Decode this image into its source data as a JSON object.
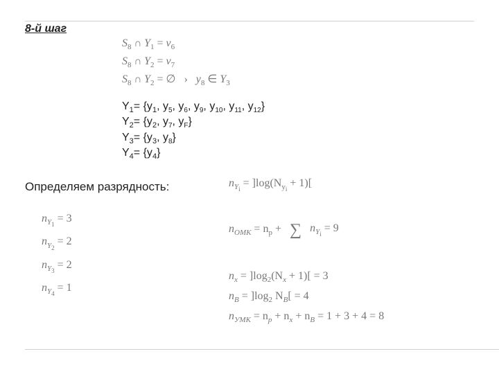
{
  "title": "8-й шаг",
  "intersections": {
    "l1_a": "S",
    "l1_b": "8",
    "l1_c": "Y",
    "l1_d": "1",
    "l1_e": "v",
    "l1_f": "6",
    "l2_a": "S",
    "l2_b": "8",
    "l2_c": "Y",
    "l2_d": "2",
    "l2_e": "v",
    "l2_f": "7",
    "l3_a": "S",
    "l3_b": "8",
    "l3_c": "Y",
    "l3_d": "2",
    "l3_emp": "∅",
    "l3_arrow": "›",
    "l3_y": "y",
    "l3_ys": "8",
    "l3_in": "∈",
    "l3_Y": "Y",
    "l3_Ys": "3"
  },
  "sets": {
    "Y1": "Y",
    "Y1s": "1",
    "Y1eq": "= {y",
    "y1s": "1",
    "c": ", y",
    "s5": "5",
    "s6": "6",
    "s9": "9",
    "s10": "10",
    "s11": "11",
    "s12": "12",
    "close": "}",
    "Y2s": "2",
    "Y2eq": "= {y",
    "y2s": "2",
    "s7": "7",
    "sF": "F",
    "Y3s": "3",
    "Y3eq": "= {y",
    "y3s": "3",
    "s8": "8",
    "Y4s": "4",
    "Y4eq": "= {y",
    "y4s": "4"
  },
  "section_label": "Определяем разрядность:",
  "ny_formula": {
    "n": "n",
    "Y": "Y",
    "i": "i",
    "eq": " = ]log(N",
    "Ysub": "y",
    "isub": "i",
    "p1": " + 1)["
  },
  "nylist": {
    "n": "n",
    "Y": "Y",
    "s1": "1",
    "v1": " = 3",
    "s2": "2",
    "v2": " = 2",
    "s3": "3",
    "v3": " = 2",
    "s4": "4",
    "v4": " = 1"
  },
  "omk": {
    "n": "n",
    "sub": "ОМК",
    "eq": " = n",
    "psub": "p",
    "plus": " + ",
    "sumsym": "∑",
    "ny": "n",
    "nys": "Y",
    "nyi": "i",
    "res": " = 9"
  },
  "ymk": {
    "l1_a": "n",
    "l1_b": "x",
    "l1_c": " = ]log",
    "l1_d": "2",
    "l1_e": "(N",
    "l1_f": "x",
    "l1_g": " + 1)[ = 3",
    "l2_a": "n",
    "l2_b": "B",
    "l2_c": " = ]log",
    "l2_d": "2",
    "l2_e": " N",
    "l2_f": "B",
    "l2_g": "[ = 4",
    "l3_a": "n",
    "l3_b": "УМК",
    "l3_c": " = n",
    "l3_d": "p",
    "l3_e": " + n",
    "l3_f": "x",
    "l3_g": " + n",
    "l3_h": "B",
    "l3_i": " = 1 + 3 + 4 = 8"
  }
}
